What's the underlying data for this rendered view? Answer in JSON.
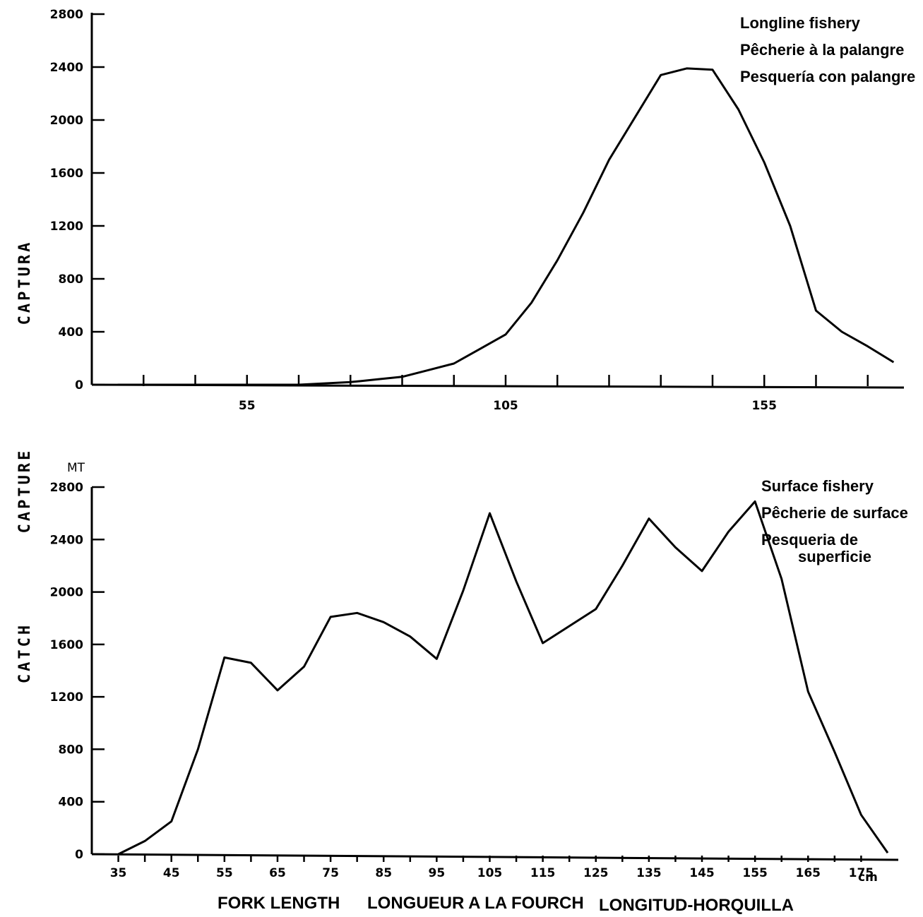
{
  "chart_data": [
    {
      "type": "line",
      "legend": [
        "Longline fishery",
        "Pêcherie à la palangre",
        "Pesquería con palangre"
      ],
      "yticks": [
        0,
        400,
        800,
        1200,
        1600,
        2000,
        2400,
        2800
      ],
      "xticks": [
        55,
        105,
        155
      ],
      "ylim": [
        0,
        2800
      ],
      "x": [
        30,
        35,
        40,
        45,
        50,
        55,
        60,
        65,
        70,
        75,
        80,
        85,
        90,
        95,
        100,
        105,
        110,
        115,
        120,
        125,
        130,
        135,
        140,
        145,
        150,
        155,
        160,
        165,
        170,
        175,
        180
      ],
      "values": [
        0,
        0,
        0,
        0,
        0,
        0,
        0,
        0,
        10,
        20,
        40,
        60,
        110,
        160,
        270,
        380,
        620,
        940,
        1300,
        1700,
        2020,
        2340,
        2390,
        2380,
        2080,
        1680,
        1200,
        560,
        400,
        290,
        170
      ]
    },
    {
      "type": "line",
      "legend": [
        "Surface fishery",
        "Pêcherie de surface",
        "Pesqueria de",
        "superficie"
      ],
      "unit": "MT",
      "yticks": [
        0,
        400,
        800,
        1200,
        1600,
        2000,
        2400,
        2800
      ],
      "xticks": [
        35,
        45,
        55,
        65,
        75,
        85,
        95,
        105,
        115,
        125,
        135,
        145,
        155,
        165,
        175
      ],
      "x_unit": "cm",
      "ylim": [
        0,
        2800
      ],
      "x": [
        35,
        40,
        45,
        50,
        55,
        60,
        65,
        70,
        75,
        80,
        85,
        90,
        95,
        100,
        105,
        110,
        115,
        120,
        125,
        130,
        135,
        140,
        145,
        150,
        155,
        160,
        165,
        170,
        175,
        180
      ],
      "values": [
        0,
        100,
        250,
        800,
        1500,
        1460,
        1250,
        1430,
        1810,
        1840,
        1770,
        1660,
        1490,
        2010,
        2600,
        2080,
        1610,
        1740,
        1870,
        2200,
        2560,
        2340,
        2160,
        2460,
        2690,
        2100,
        1240,
        780,
        300,
        10
      ]
    }
  ],
  "y_axis_titles": [
    "CAPTURA",
    "CAPTURE",
    "CATCH"
  ],
  "x_axis_title": [
    "FORK LENGTH",
    "LONGUEUR A LA FOURCH",
    "LONGITUD-HORQUILLA"
  ]
}
